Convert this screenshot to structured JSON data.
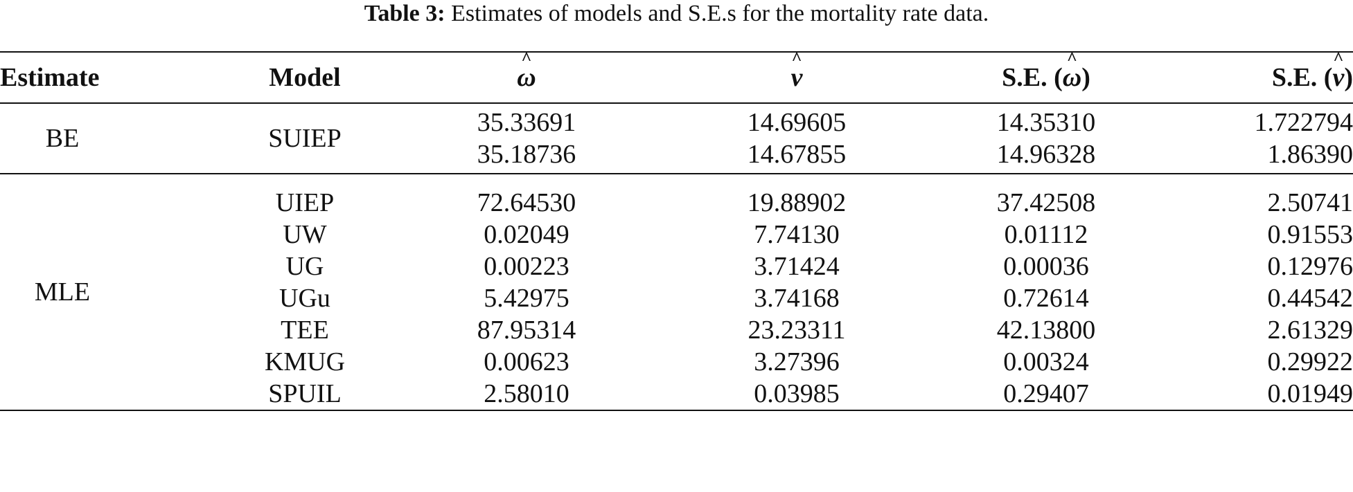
{
  "caption": {
    "label": "Table 3:",
    "text": "Estimates of models and S.E.s for the mortality rate data."
  },
  "header": {
    "estimate": "Estimate",
    "model": "Model",
    "omega_symbol": "ω",
    "nu_symbol": "ν",
    "se_prefix": "S.E. (",
    "se_suffix": ")"
  },
  "groups": [
    {
      "estimate": "BE",
      "model": "SUIEP",
      "rows": [
        {
          "w": "35.33691",
          "v": "14.69605",
          "se_w": "14.35310",
          "se_v": "1.722794"
        },
        {
          "w": "35.18736",
          "v": "14.67855",
          "se_w": "14.96328",
          "se_v": "1.86390"
        }
      ]
    },
    {
      "estimate": "MLE",
      "rows": [
        {
          "model": "UIEP",
          "w": "72.64530",
          "v": "19.88902",
          "se_w": "37.42508",
          "se_v": "2.50741"
        },
        {
          "model": "UW",
          "w": "0.02049",
          "v": "7.74130",
          "se_w": "0.01112",
          "se_v": "0.91553"
        },
        {
          "model": "UG",
          "w": "0.00223",
          "v": "3.71424",
          "se_w": "0.00036",
          "se_v": "0.12976"
        },
        {
          "model": "UGu",
          "w": "5.42975",
          "v": "3.74168",
          "se_w": "0.72614",
          "se_v": "0.44542"
        },
        {
          "model": "TEE",
          "w": "87.95314",
          "v": "23.23311",
          "se_w": "42.13800",
          "se_v": "2.61329"
        },
        {
          "model": "KMUG",
          "w": "0.00623",
          "v": "3.27396",
          "se_w": "0.00324",
          "se_v": "0.29922"
        },
        {
          "model": "SPUIL",
          "w": "2.58010",
          "v": "0.03985",
          "se_w": "0.29407",
          "se_v": "0.01949"
        }
      ]
    }
  ]
}
